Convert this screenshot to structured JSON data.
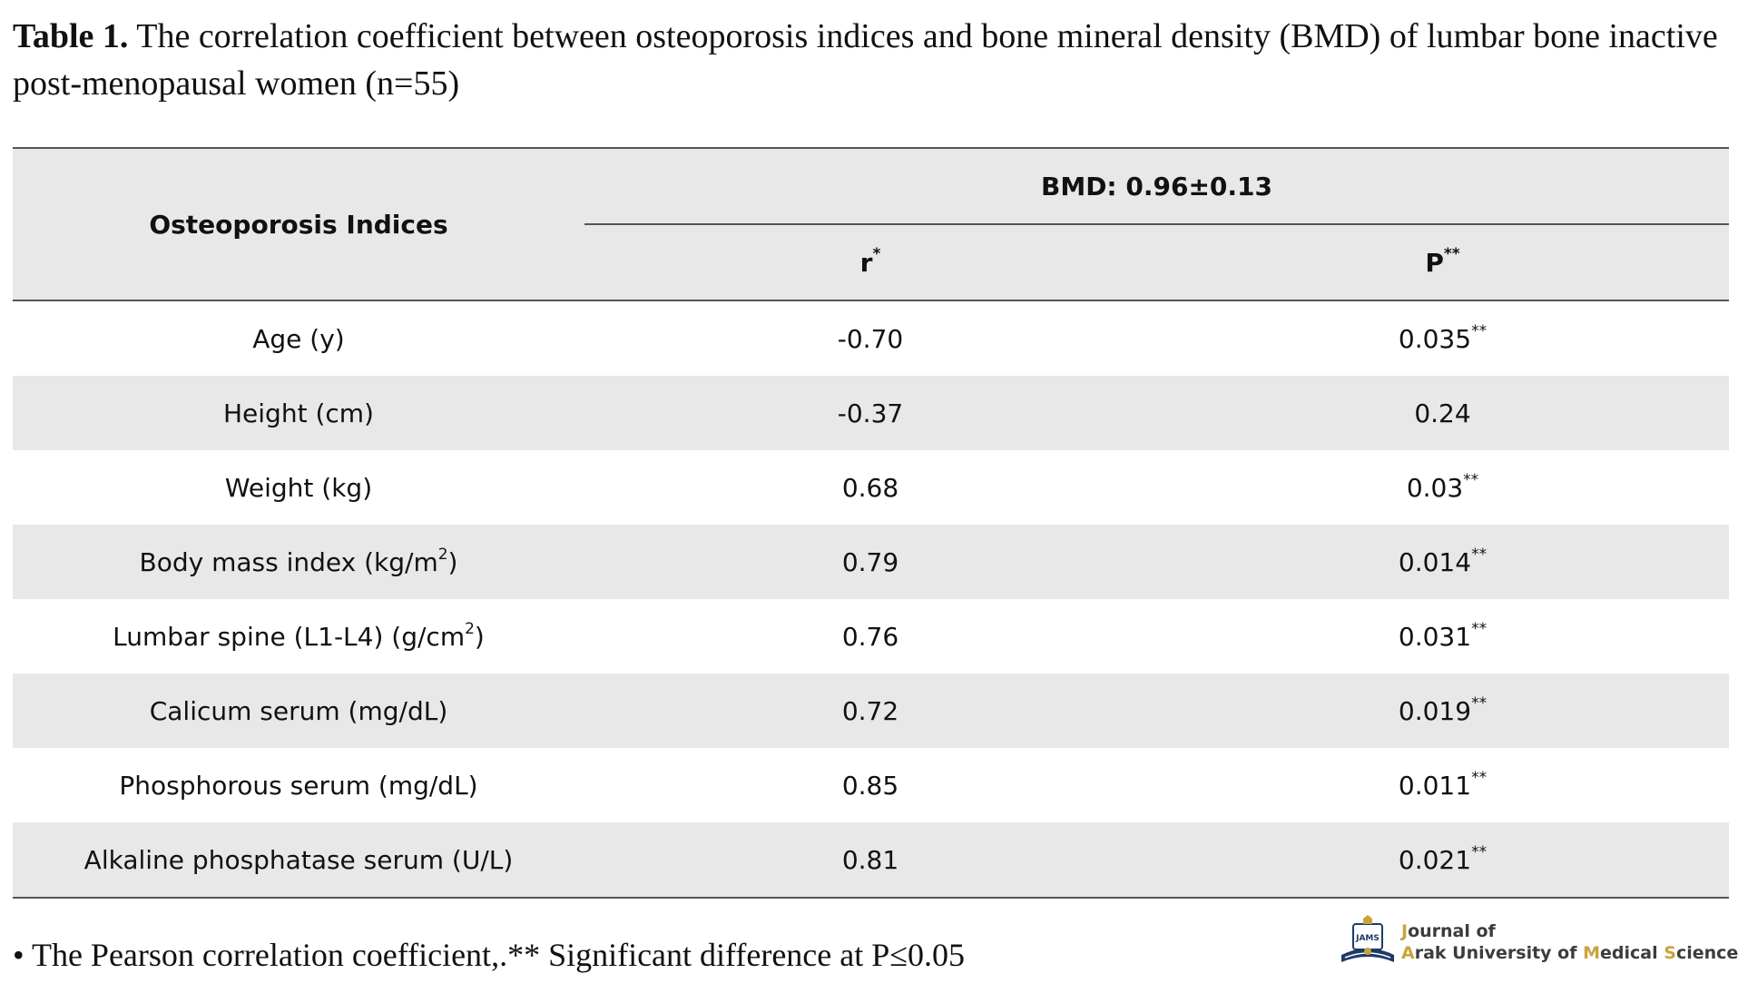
{
  "caption": {
    "label": "Table 1.",
    "text": " The correlation coefficient between osteoporosis indices and bone mineral density (BMD) of lumbar bone inactive post-menopausal women (n=55)"
  },
  "table": {
    "header": {
      "indices": "Osteoporosis Indices",
      "group": "BMD: 0.96±0.13",
      "r_label": "r",
      "r_mark": "*",
      "p_label": "P",
      "p_mark": "**"
    },
    "rows": [
      {
        "index": "Age (y)",
        "index_sup": "",
        "index_after": "",
        "r": "-0.70",
        "p": "0.035",
        "p_mark": "**"
      },
      {
        "index": "Height (cm)",
        "index_sup": "",
        "index_after": "",
        "r": "-0.37",
        "p": "0.24",
        "p_mark": ""
      },
      {
        "index": "Weight (kg)",
        "index_sup": "",
        "index_after": "",
        "r": "0.68",
        "p": "0.03",
        "p_mark": "**"
      },
      {
        "index": "Body mass index (kg/m",
        "index_sup": "2",
        "index_after": ")",
        "r": "0.79",
        "p": "0.014",
        "p_mark": "**"
      },
      {
        "index": "Lumbar spine (L1-L4) (g/cm",
        "index_sup": "2",
        "index_after": ")",
        "r": "0.76",
        "p": "0.031",
        "p_mark": "**"
      },
      {
        "index": "Calicum serum (mg/dL)",
        "index_sup": "",
        "index_after": "",
        "r": "0.72",
        "p": "0.019",
        "p_mark": "**"
      },
      {
        "index": "Phosphorous serum (mg/dL)",
        "index_sup": "",
        "index_after": "",
        "r": "0.85",
        "p": "0.011",
        "p_mark": "**"
      },
      {
        "index": "Alkaline phosphatase serum (U/L)",
        "index_sup": "",
        "index_after": "",
        "r": "0.81",
        "p": "0.021",
        "p_mark": "**"
      }
    ]
  },
  "footnote": "• The Pearson correlation coefficient,.** Significant difference at P≤0.05",
  "logo": {
    "line1": "Journal of",
    "line2_a": "A",
    "line2_b": "rak University of ",
    "line2_c": "M",
    "line2_d": "edical ",
    "line2_e": "S",
    "line2_f": "ciences",
    "emblem_text": "JAMS",
    "accent_color": "#c9a43a",
    "text_color": "#3c3c3c",
    "emblem_color": "#1e3a68"
  },
  "colors": {
    "shade": "#e8e8e8",
    "rule": "#555555"
  }
}
